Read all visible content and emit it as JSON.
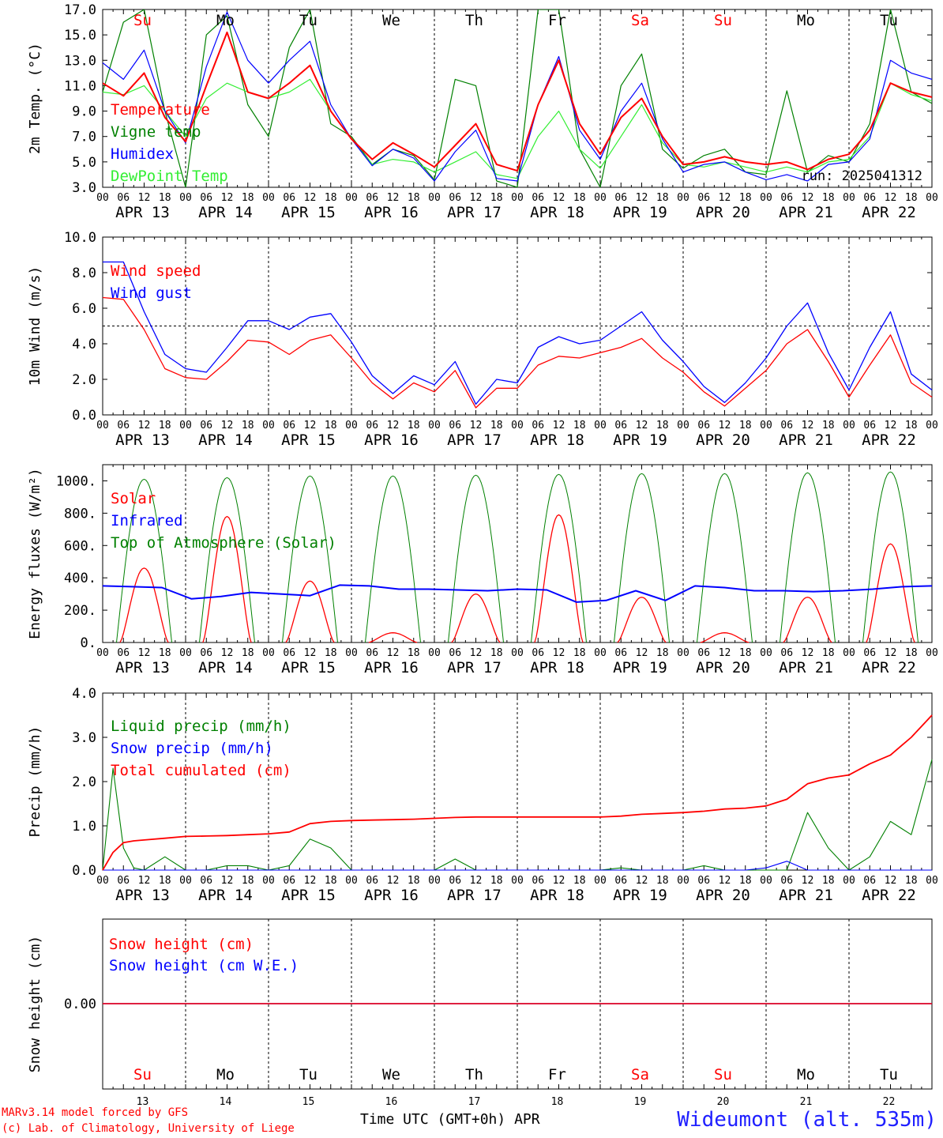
{
  "colors": {
    "red": "#ff0000",
    "green": "#008000",
    "blue": "#0000ff",
    "lightgreen": "#33ee33",
    "black": "#000000"
  },
  "x_axis": {
    "hour_ticks": [
      "00",
      "06",
      "12",
      "18"
    ],
    "final_tick": "00",
    "dates": [
      "APR 13",
      "APR 14",
      "APR 15",
      "APR 16",
      "APR 17",
      "APR 18",
      "APR 19",
      "APR 20",
      "APR 21",
      "APR 22"
    ],
    "day_names": [
      "Su",
      "Mo",
      "Tu",
      "We",
      "Th",
      "Fr",
      "Sa",
      "Su",
      "Mo",
      "Tu"
    ],
    "weekend_flags": [
      true,
      false,
      false,
      false,
      false,
      false,
      true,
      true,
      false,
      false
    ],
    "day_numbers": [
      "13",
      "14",
      "15",
      "16",
      "17",
      "18",
      "19",
      "20",
      "21",
      "22"
    ],
    "title": "Time UTC (GMT+0h)",
    "month": "APR"
  },
  "footer": {
    "credit_line1": "MARv3.14 model forced by GFS",
    "credit_line2": "(c) Lab. of Climatology, University of Liege",
    "station": "Wideumont (alt. 535m)"
  },
  "chart_data": [
    {
      "type": "line",
      "id": "temperature",
      "ylabel": "2m Temp. (°C)",
      "ylim": [
        3,
        17
      ],
      "yticks": [
        "3.0",
        "5.0",
        "7.0",
        "9.0",
        "11.0",
        "13.0",
        "15.0",
        "17.0"
      ],
      "annotation": "run: 2025041312",
      "x": [
        0,
        6,
        12,
        18,
        24,
        30,
        36,
        42,
        48,
        54,
        60,
        66,
        72,
        78,
        84,
        90,
        96,
        102,
        108,
        114,
        120,
        126,
        132,
        138,
        144,
        150,
        156,
        162,
        168,
        174,
        180,
        186,
        192,
        198,
        204,
        210,
        216,
        222,
        228,
        234,
        240
      ],
      "series": [
        {
          "name": "Temperature",
          "color": "red",
          "values": [
            11.2,
            10.2,
            12.0,
            8.5,
            6.6,
            11.0,
            15.2,
            10.5,
            10.0,
            11.2,
            12.6,
            9.0,
            6.8,
            5.2,
            6.5,
            5.6,
            4.6,
            6.3,
            8.0,
            4.8,
            4.3,
            9.5,
            13.0,
            8.0,
            5.6,
            8.5,
            10.0,
            7.0,
            4.8,
            5.0,
            5.4,
            5.0,
            4.8,
            5.0,
            4.4,
            5.2,
            5.6,
            7.5,
            11.2,
            10.5,
            10.1
          ]
        },
        {
          "name": "Vigne temp",
          "color": "green",
          "values": [
            10.5,
            16.0,
            17.0,
            9.0,
            3.0,
            15.0,
            16.5,
            9.5,
            7.0,
            14.0,
            17.0,
            8.0,
            7.0,
            4.8,
            6.0,
            5.5,
            3.6,
            11.5,
            11.0,
            3.5,
            3.0,
            17.0,
            17.0,
            6.0,
            3.0,
            11.0,
            13.5,
            6.0,
            4.5,
            5.5,
            6.0,
            4.2,
            4.0,
            10.6,
            4.2,
            5.5,
            5.0,
            8.0,
            17.0,
            10.5,
            9.6
          ]
        },
        {
          "name": "Humidex",
          "color": "blue",
          "values": [
            12.8,
            11.5,
            13.8,
            9.0,
            6.5,
            12.5,
            16.8,
            13.0,
            11.2,
            13.0,
            14.5,
            9.5,
            6.8,
            4.7,
            6.0,
            5.3,
            3.5,
            5.8,
            7.5,
            3.7,
            3.5,
            9.5,
            13.3,
            7.5,
            5.2,
            9.0,
            11.2,
            6.8,
            4.2,
            4.8,
            5.0,
            4.2,
            3.6,
            4.0,
            3.5,
            4.8,
            5.0,
            6.8,
            13.0,
            12.0,
            11.5
          ]
        },
        {
          "name": "DewPoint Temp",
          "color": "lightgreen",
          "values": [
            10.5,
            10.3,
            11.0,
            9.0,
            7.0,
            10.0,
            11.2,
            10.5,
            10.0,
            10.5,
            11.5,
            9.0,
            6.8,
            4.8,
            5.2,
            5.0,
            4.2,
            5.0,
            5.8,
            4.0,
            3.7,
            7.0,
            9.0,
            6.0,
            4.5,
            7.0,
            9.5,
            6.5,
            4.8,
            4.6,
            5.0,
            4.6,
            4.2,
            4.6,
            4.2,
            5.0,
            5.2,
            7.0,
            11.2,
            10.3,
            9.8
          ]
        }
      ]
    },
    {
      "type": "line",
      "id": "wind",
      "ylabel": "10m Wind (m/s)",
      "ylim": [
        0,
        10
      ],
      "yticks": [
        "0.0",
        "2.0",
        "4.0",
        "6.0",
        "8.0",
        "10.0"
      ],
      "reference_line": 5,
      "x": [
        0,
        6,
        12,
        18,
        24,
        30,
        36,
        42,
        48,
        54,
        60,
        66,
        72,
        78,
        84,
        90,
        96,
        102,
        108,
        114,
        120,
        126,
        132,
        138,
        144,
        150,
        156,
        162,
        168,
        174,
        180,
        186,
        192,
        198,
        204,
        210,
        216,
        222,
        228,
        234,
        240
      ],
      "series": [
        {
          "name": "Wind speed",
          "color": "red",
          "values": [
            6.6,
            6.5,
            4.8,
            2.6,
            2.1,
            2.0,
            3.0,
            4.2,
            4.1,
            3.4,
            4.2,
            4.5,
            3.2,
            1.8,
            0.9,
            1.8,
            1.3,
            2.5,
            0.4,
            1.5,
            1.5,
            2.8,
            3.3,
            3.2,
            3.5,
            3.8,
            4.3,
            3.2,
            2.4,
            1.3,
            0.5,
            1.5,
            2.5,
            4.0,
            4.8,
            3.0,
            1.0,
            2.8,
            4.5,
            1.8,
            1.0
          ]
        },
        {
          "name": "Wind gust",
          "color": "blue",
          "values": [
            8.6,
            8.6,
            5.8,
            3.4,
            2.6,
            2.4,
            3.8,
            5.3,
            5.3,
            4.8,
            5.5,
            5.7,
            4.1,
            2.2,
            1.2,
            2.2,
            1.7,
            3.0,
            0.6,
            2.0,
            1.8,
            3.8,
            4.4,
            4.0,
            4.2,
            5.0,
            5.8,
            4.2,
            3.0,
            1.6,
            0.7,
            1.8,
            3.2,
            5.0,
            6.3,
            3.5,
            1.4,
            3.8,
            5.8,
            2.3,
            1.4
          ]
        }
      ]
    },
    {
      "type": "line",
      "id": "energy",
      "ylabel": "Energy fluxes (W/m²)",
      "ylim": [
        0,
        1100
      ],
      "yticks": [
        "0.",
        "200.",
        "400.",
        "600.",
        "800.",
        "1000."
      ],
      "x_note": "hours from APR 13 00 UTC",
      "series": [
        {
          "name": "Solar",
          "color": "red",
          "shape": "peak",
          "days": [
            0,
            1,
            2,
            3,
            4,
            5,
            6,
            7,
            8,
            9
          ],
          "peaks": [
            460,
            780,
            380,
            60,
            300,
            790,
            280,
            60,
            280,
            610
          ]
        },
        {
          "name": "Infrared",
          "color": "blue",
          "values": [
            350,
            345,
            340,
            270,
            285,
            310,
            300,
            290,
            355,
            350,
            330,
            330,
            325,
            320,
            330,
            325,
            250,
            260,
            320,
            260,
            350,
            340,
            320,
            320,
            315,
            320,
            330,
            345,
            350
          ]
        },
        {
          "name": "Top of Atmosphere (Solar)",
          "color": "green",
          "days": [
            0,
            1,
            2,
            3,
            4,
            5,
            6,
            7,
            8,
            9
          ],
          "peaks": [
            1010,
            1020,
            1030,
            1030,
            1035,
            1040,
            1045,
            1045,
            1050,
            1055
          ]
        }
      ]
    },
    {
      "type": "line",
      "id": "precip",
      "ylabel": "Precip (mm/h)",
      "ylim": [
        0,
        4
      ],
      "yticks": [
        "0.0",
        "1.0",
        "2.0",
        "3.0",
        "4.0"
      ],
      "x": [
        0,
        3,
        6,
        9,
        12,
        18,
        24,
        30,
        36,
        42,
        48,
        54,
        60,
        66,
        72,
        78,
        84,
        90,
        96,
        102,
        108,
        114,
        120,
        126,
        132,
        138,
        144,
        150,
        156,
        162,
        168,
        174,
        180,
        186,
        192,
        198,
        204,
        210,
        216,
        222,
        228,
        234,
        240
      ],
      "series": [
        {
          "name": "Liquid precip (mm/h)",
          "color": "green",
          "values": [
            0.0,
            2.3,
            0.5,
            0.05,
            0.0,
            0.3,
            0.0,
            0.0,
            0.1,
            0.1,
            0.0,
            0.1,
            0.7,
            0.5,
            0.0,
            0.0,
            0.0,
            0.0,
            0.0,
            0.25,
            0.0,
            0.0,
            0.0,
            0.0,
            0.0,
            0.0,
            0.0,
            0.05,
            0.0,
            0.0,
            0.0,
            0.1,
            0.0,
            0.0,
            0.0,
            0.0,
            1.3,
            0.5,
            0.0,
            0.3,
            1.1,
            0.8,
            2.5
          ]
        },
        {
          "name": "Snow precip (mm/h)",
          "color": "blue",
          "values": [
            0.0,
            0.0,
            0.0,
            0.0,
            0.0,
            0.0,
            0.0,
            0.0,
            0.0,
            0.0,
            0.0,
            0.0,
            0.0,
            0.0,
            0.0,
            0.0,
            0.0,
            0.0,
            0.0,
            0.0,
            0.0,
            0.0,
            0.0,
            0.0,
            0.0,
            0.0,
            0.0,
            0.0,
            0.0,
            0.0,
            0.0,
            0.0,
            0.0,
            0.0,
            0.05,
            0.2,
            0.0,
            0.0,
            0.0,
            0.0,
            0.0,
            0.0,
            0.0
          ]
        },
        {
          "name": "Total cumulated (cm)",
          "color": "red",
          "values": [
            0.0,
            0.4,
            0.62,
            0.66,
            0.68,
            0.72,
            0.76,
            0.77,
            0.78,
            0.8,
            0.82,
            0.86,
            1.05,
            1.1,
            1.12,
            1.13,
            1.14,
            1.15,
            1.17,
            1.19,
            1.2,
            1.2,
            1.2,
            1.2,
            1.2,
            1.2,
            1.2,
            1.22,
            1.26,
            1.28,
            1.3,
            1.33,
            1.38,
            1.4,
            1.45,
            1.6,
            1.95,
            2.08,
            2.15,
            2.4,
            2.6,
            3.0,
            3.5
          ]
        }
      ]
    },
    {
      "type": "line",
      "id": "snow",
      "ylabel": "Snow height (cm)",
      "yticks": [
        "0.00"
      ],
      "series": [
        {
          "name": "Snow height (cm)",
          "color": "red",
          "values": [
            0.0,
            0.0
          ]
        },
        {
          "name": "Snow height (cm W.E.)",
          "color": "blue",
          "values": [
            0.0,
            0.0
          ]
        }
      ]
    }
  ]
}
